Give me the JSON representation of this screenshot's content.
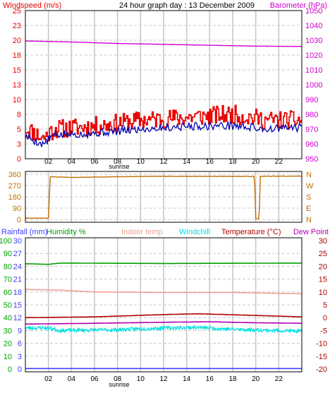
{
  "colors": {
    "windspeed": "#e80000",
    "gust_avg": "#0000b0",
    "barometer": "#d000d0",
    "direction": "#c07000",
    "rainfall": "#4040ff",
    "humidity": "#00a000",
    "indoor": "#f0a090",
    "windchill": "#00e0e0",
    "temperature": "#b00000",
    "dewpoint": "#b000b0",
    "grid": "#c8c8c8",
    "frame": "#000000"
  },
  "chart_data": [
    {
      "type": "line",
      "title": "24 hour graph day : 13 December 2009",
      "y_left_label": "Windspeed (m/s)",
      "y_right_label": "Barometer (hPa)",
      "y_left_ticks": [
        "0",
        "3",
        "5",
        "8",
        "10",
        "13",
        "15",
        "18",
        "20",
        "23",
        "25"
      ],
      "y_left_values": [
        0,
        2.5,
        5,
        7.5,
        10,
        12.5,
        15,
        17.5,
        20,
        22.5,
        25
      ],
      "y_right_ticks": [
        "950",
        "960",
        "970",
        "980",
        "990",
        "1000",
        "1010",
        "1020",
        "1030",
        "1040",
        "1050"
      ],
      "ylim_left": [
        0,
        25
      ],
      "ylim_right": [
        950,
        1050
      ],
      "x_ticks": [
        "02",
        "04",
        "06",
        "08",
        "10",
        "12",
        "14",
        "16",
        "18",
        "20",
        "22"
      ],
      "x_marker": "sunrise",
      "x_marker_hour": 8.5,
      "xlim": [
        0,
        24
      ],
      "series": [
        {
          "key": "windspeed",
          "axis": "left",
          "base": 6.5,
          "amp": 1.6,
          "seed": 11,
          "profile": [
            [
              0,
              5.2
            ],
            [
              1.5,
              3.5
            ],
            [
              2.5,
              5
            ],
            [
              6,
              5.5
            ],
            [
              10,
              6.5
            ],
            [
              14,
              7
            ],
            [
              18,
              7.5
            ],
            [
              21,
              6.5
            ],
            [
              24,
              6.5
            ]
          ]
        },
        {
          "key": "gust_avg",
          "axis": "left",
          "base": 5,
          "amp": 0.7,
          "seed": 5,
          "profile": [
            [
              0,
              3.8
            ],
            [
              1.5,
              2.4
            ],
            [
              2.5,
              4
            ],
            [
              6,
              4.3
            ],
            [
              10,
              5
            ],
            [
              14,
              5.5
            ],
            [
              18,
              5.6
            ],
            [
              21,
              5
            ],
            [
              24,
              5.3
            ]
          ]
        },
        {
          "key": "barometer",
          "axis": "right",
          "profile": [
            [
              0,
              1029.5
            ],
            [
              4,
              1028.8
            ],
            [
              8,
              1027.8
            ],
            [
              12,
              1027.2
            ],
            [
              16,
              1026.6
            ],
            [
              20,
              1026.0
            ],
            [
              24,
              1025.8
            ]
          ]
        }
      ]
    },
    {
      "type": "line",
      "y_ticks": [
        "0",
        "90",
        "180",
        "270",
        "360"
      ],
      "y_values": [
        0,
        90,
        180,
        270,
        360
      ],
      "y_right_ticks": [
        "N",
        "W",
        "S",
        "E",
        "N"
      ],
      "ylim": [
        0,
        360
      ],
      "series": [
        {
          "key": "direction",
          "profile": [
            [
              0,
              10
            ],
            [
              2.0,
              10
            ],
            [
              2.15,
              340
            ],
            [
              4,
              335
            ],
            [
              10,
              343
            ],
            [
              14,
              344
            ],
            [
              19.9,
              343
            ],
            [
              20.0,
              5
            ],
            [
              20.3,
              5
            ],
            [
              20.4,
              344
            ],
            [
              24,
              345
            ]
          ]
        }
      ]
    },
    {
      "type": "line",
      "legend": [
        "Rainfall (mm)",
        "Humidity %",
        "Indoor temp",
        "Windchill",
        "Temperature (°C)",
        "Dew Point"
      ],
      "y_left_rain_ticks": [
        "0",
        "3",
        "6",
        "9",
        "12",
        "15",
        "18",
        "21",
        "24",
        "27",
        "30"
      ],
      "y_left_hum_ticks": [
        "0",
        "10",
        "20",
        "30",
        "40",
        "50",
        "60",
        "70",
        "80",
        "90",
        "100"
      ],
      "y_right_ticks": [
        "-20",
        "-15",
        "-10",
        "-5",
        "0",
        "5",
        "10",
        "15",
        "20",
        "25",
        "30"
      ],
      "ylim_humidity": [
        0,
        100
      ],
      "ylim_temp": [
        -20,
        30
      ],
      "series": [
        {
          "key": "humidity",
          "axis": "humidity",
          "profile": [
            [
              0,
              82
            ],
            [
              2,
              81.5
            ],
            [
              3,
              82.5
            ],
            [
              12,
              82.2
            ],
            [
              24,
              82.5
            ]
          ]
        },
        {
          "key": "indoor",
          "axis": "temp",
          "profile": [
            [
              0,
              11
            ],
            [
              3,
              10.7
            ],
            [
              6,
              10
            ],
            [
              12,
              9.8
            ],
            [
              18,
              9.8
            ],
            [
              24,
              9.3
            ]
          ]
        },
        {
          "key": "temperature",
          "axis": "temp",
          "profile": [
            [
              0,
              0
            ],
            [
              6,
              0.3
            ],
            [
              12,
              1.2
            ],
            [
              15,
              1.5
            ],
            [
              19,
              1.0
            ],
            [
              24,
              0.3
            ]
          ]
        },
        {
          "key": "dewpoint",
          "axis": "temp",
          "profile": [
            [
              0,
              -2.5
            ],
            [
              6,
              -2.2
            ],
            [
              12,
              -1.8
            ],
            [
              16,
              -1.6
            ],
            [
              20,
              -2.0
            ],
            [
              24,
              -2.2
            ]
          ]
        },
        {
          "key": "windchill",
          "axis": "temp",
          "noise": 0.7,
          "seed": 23,
          "profile": [
            [
              0,
              -4
            ],
            [
              2,
              -4
            ],
            [
              3,
              -5
            ],
            [
              8,
              -4.7
            ],
            [
              12,
              -4
            ],
            [
              15,
              -3.8
            ],
            [
              18,
              -4.5
            ],
            [
              24,
              -5.3
            ]
          ]
        },
        {
          "key": "rainfall",
          "axis": "humidity",
          "profile": [
            [
              0,
              0.4
            ],
            [
              24,
              0.4
            ]
          ]
        }
      ]
    }
  ]
}
